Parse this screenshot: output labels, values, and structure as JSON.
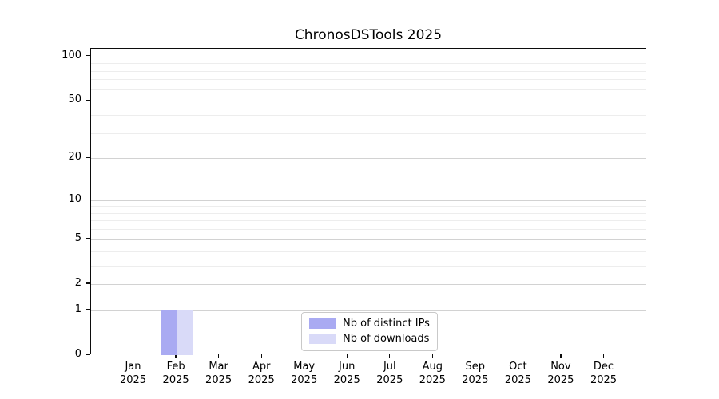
{
  "chart_data": {
    "type": "bar",
    "title": "ChronosDSTools 2025",
    "categories": [
      {
        "line1": "Jan",
        "line2": "2025"
      },
      {
        "line1": "Feb",
        "line2": "2025"
      },
      {
        "line1": "Mar",
        "line2": "2025"
      },
      {
        "line1": "Apr",
        "line2": "2025"
      },
      {
        "line1": "May",
        "line2": "2025"
      },
      {
        "line1": "Jun",
        "line2": "2025"
      },
      {
        "line1": "Jul",
        "line2": "2025"
      },
      {
        "line1": "Aug",
        "line2": "2025"
      },
      {
        "line1": "Sep",
        "line2": "2025"
      },
      {
        "line1": "Oct",
        "line2": "2025"
      },
      {
        "line1": "Nov",
        "line2": "2025"
      },
      {
        "line1": "Dec",
        "line2": "2025"
      }
    ],
    "series": [
      {
        "name": "Nb of distinct IPs",
        "color": "#a9aaf2",
        "values": [
          0,
          1,
          0,
          0,
          0,
          0,
          0,
          0,
          0,
          0,
          0,
          0
        ]
      },
      {
        "name": "Nb of downloads",
        "color": "#d9daf8",
        "values": [
          0,
          1,
          0,
          0,
          0,
          0,
          0,
          0,
          0,
          0,
          0,
          0
        ]
      }
    ],
    "y_axis": {
      "scale": "log1p",
      "ticks": [
        0,
        1,
        2,
        5,
        10,
        20,
        50,
        100
      ],
      "minor_ticks": [
        3,
        4,
        6,
        7,
        8,
        9,
        30,
        40,
        60,
        70,
        80,
        90
      ],
      "max": 113
    },
    "grid": {
      "major_color": "#d2d2d2",
      "minor_color": "#ededed"
    },
    "legend_position": "lower center"
  }
}
